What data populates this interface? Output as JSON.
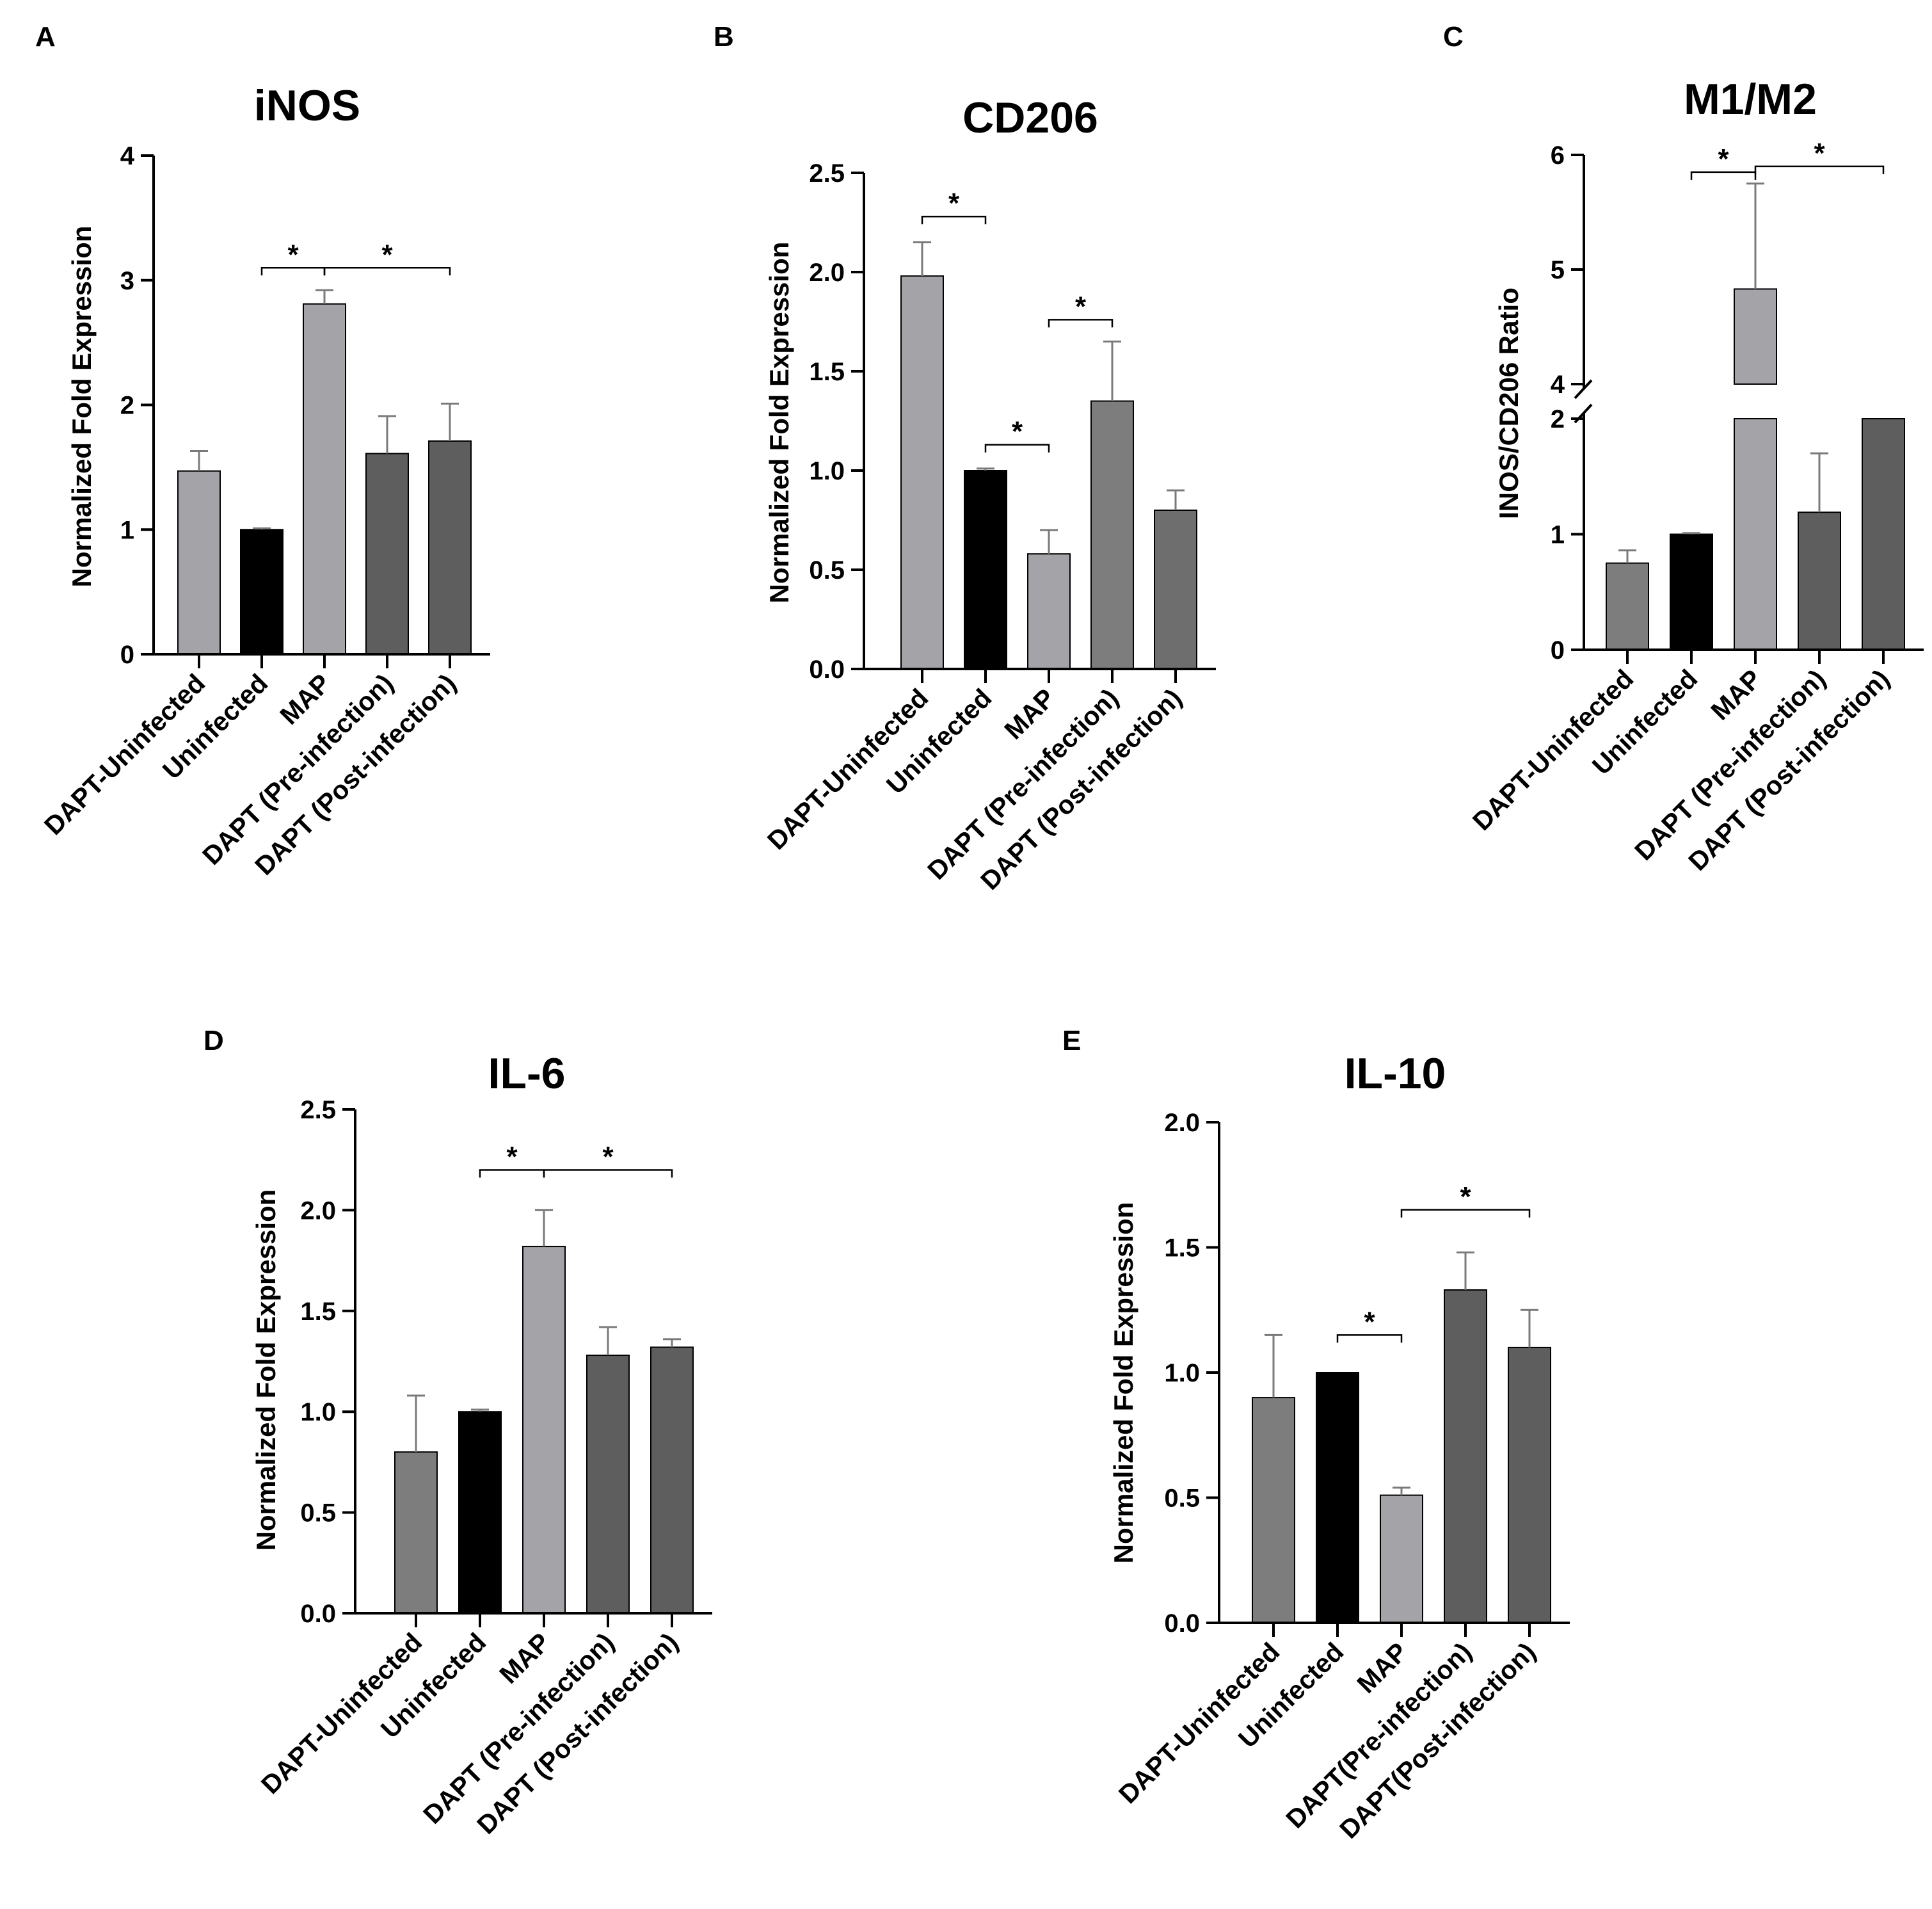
{
  "figure": {
    "panel_count": 5
  },
  "chart_data": [
    {
      "panel": "A",
      "type": "bar",
      "title": "iNOS",
      "xlabel": "",
      "ylabel": "Normalized Fold Expression",
      "ylim": [
        0,
        4
      ],
      "yticks": [
        0,
        1,
        2,
        3,
        4
      ],
      "tick_labels": [
        "0",
        "1",
        "2",
        "3",
        "4"
      ],
      "categories": [
        "DAPT-Uninfected",
        "Uninfected",
        "MAP",
        "DAPT (Pre-infection)",
        "DAPT (Post-infection)"
      ],
      "values": [
        1.47,
        1.0,
        2.81,
        1.61,
        1.71
      ],
      "errors": [
        0.16,
        0.01,
        0.11,
        0.3,
        0.3
      ],
      "colors": [
        "#a3a3a8",
        "#000000",
        "#a3a3a8",
        "#5e5e5e",
        "#5e5e5e"
      ],
      "significance": [
        {
          "from": 1,
          "to": 2,
          "y": 3.1,
          "label": "*"
        },
        {
          "from": 2,
          "to": 4,
          "y": 3.1,
          "label": "*"
        }
      ]
    },
    {
      "panel": "B",
      "type": "bar",
      "title": "CD206",
      "xlabel": "",
      "ylabel": "Normalized Fold Expression",
      "ylim": [
        0,
        2.5
      ],
      "yticks": [
        0,
        0.5,
        1.0,
        1.5,
        2.0,
        2.5
      ],
      "tick_labels": [
        "0.0",
        "0.5",
        "1.0",
        "1.5",
        "2.0",
        "2.5"
      ],
      "categories": [
        "DAPT-Uninfected",
        "Uninfected",
        "MAP",
        "DAPT (Pre-infection)",
        "DAPT (Post-infection)"
      ],
      "values": [
        1.98,
        1.0,
        0.58,
        1.35,
        0.8
      ],
      "errors": [
        0.17,
        0.01,
        0.12,
        0.3,
        0.1
      ],
      "colors": [
        "#a3a3a8",
        "#000000",
        "#a3a3a8",
        "#7d7d7d",
        "#6e6e6e"
      ],
      "significance": [
        {
          "from": 0,
          "to": 1,
          "y": 2.28,
          "label": "*"
        },
        {
          "from": 1,
          "to": 2,
          "y": 1.13,
          "label": "*"
        },
        {
          "from": 2,
          "to": 3,
          "y": 1.76,
          "label": "*"
        }
      ]
    },
    {
      "panel": "C",
      "type": "bar",
      "title": "M1/M2",
      "xlabel": "",
      "ylabel": "INOS/CD206 Ratio",
      "broken_axis": {
        "lower": [
          0,
          2
        ],
        "upper": [
          4,
          6
        ]
      },
      "yticks": [
        0,
        1,
        2,
        4,
        5,
        6
      ],
      "tick_labels": [
        "0",
        "1",
        "2",
        "4",
        "5",
        "6"
      ],
      "categories": [
        "DAPT-Uninfected",
        "Uninfected",
        "MAP",
        "DAPT (Pre-infection)",
        "DAPT (Post-infection)"
      ],
      "values": [
        0.75,
        1.0,
        4.83,
        1.19,
        2.0
      ],
      "errors": [
        0.11,
        0.01,
        0.92,
        0.51,
        0
      ],
      "colors": [
        "#7d7d7d",
        "#000000",
        "#a3a3a8",
        "#5e5e5e",
        "#5e5e5e"
      ],
      "significance": [
        {
          "from": 1,
          "to": 2,
          "y": 5.85,
          "label": "*"
        },
        {
          "from": 2,
          "to": 4,
          "y": 5.9,
          "label": "*"
        }
      ]
    },
    {
      "panel": "D",
      "type": "bar",
      "title": "IL-6",
      "xlabel": "",
      "ylabel": "Normalized Fold Expression",
      "ylim": [
        0,
        2.5
      ],
      "yticks": [
        0,
        0.5,
        1.0,
        1.5,
        2.0,
        2.5
      ],
      "tick_labels": [
        "0.0",
        "0.5",
        "1.0",
        "1.5",
        "2.0",
        "2.5"
      ],
      "categories": [
        "DAPT-Uninfected",
        "Uninfected",
        "MAP",
        "DAPT (Pre-infection)",
        "DAPT (Post-infection)"
      ],
      "values": [
        0.8,
        1.0,
        1.82,
        1.28,
        1.32
      ],
      "errors": [
        0.28,
        0.01,
        0.18,
        0.14,
        0.04
      ],
      "colors": [
        "#7d7d7d",
        "#000000",
        "#a3a3a8",
        "#5e5e5e",
        "#5e5e5e"
      ],
      "significance": [
        {
          "from": 1,
          "to": 2,
          "y": 2.2,
          "label": "*"
        },
        {
          "from": 2,
          "to": 4,
          "y": 2.2,
          "label": "*"
        }
      ]
    },
    {
      "panel": "E",
      "type": "bar",
      "title": "IL-10",
      "xlabel": "",
      "ylabel": "Normalized Fold Expression",
      "ylim": [
        0,
        2.0
      ],
      "yticks": [
        0,
        0.5,
        1.0,
        1.5,
        2.0
      ],
      "tick_labels": [
        "0.0",
        "0.5",
        "1.0",
        "1.5",
        "2.0"
      ],
      "categories": [
        "DAPT-Uninfected",
        "Uninfected",
        "MAP",
        "DAPT(Pre-infection)",
        "DAPT(Post-infection)"
      ],
      "values": [
        0.9,
        1.0,
        0.51,
        1.33,
        1.1
      ],
      "errors": [
        0.25,
        0.0,
        0.03,
        0.15,
        0.15
      ],
      "colors": [
        "#7d7d7d",
        "#000000",
        "#a3a3a8",
        "#5e5e5e",
        "#5e5e5e"
      ],
      "significance": [
        {
          "from": 1,
          "to": 2,
          "y": 1.15,
          "label": "*"
        },
        {
          "from": 2,
          "to": 4,
          "y": 1.65,
          "label": "*"
        }
      ]
    }
  ]
}
